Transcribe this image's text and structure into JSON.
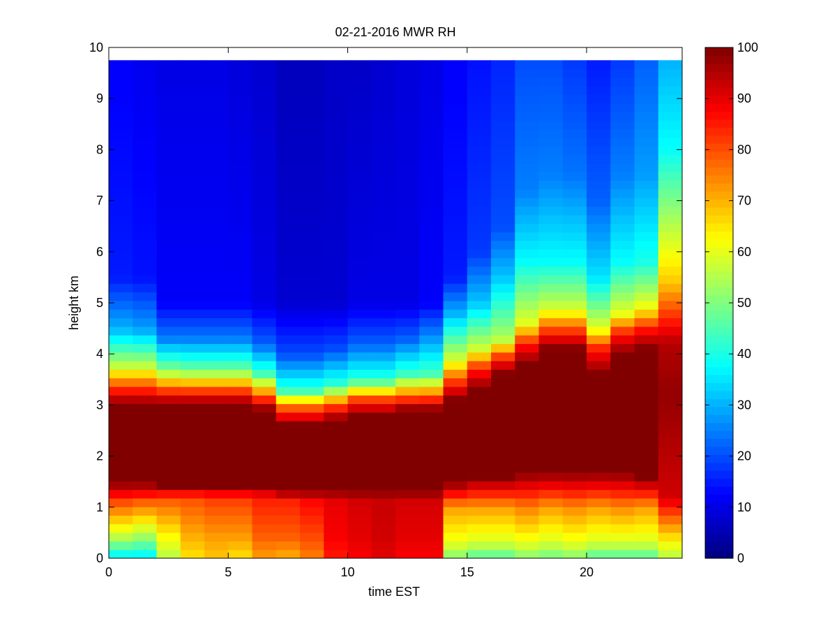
{
  "chart_data": {
    "type": "heatmap",
    "title": "02-21-2016 MWR RH",
    "xlabel": "time EST",
    "ylabel": "height km",
    "xlim": [
      0,
      24
    ],
    "ylim": [
      0,
      10
    ],
    "xticks": [
      "0",
      "5",
      "10",
      "15",
      "20"
    ],
    "xtick_values": [
      0,
      5,
      10,
      15,
      20
    ],
    "yticks": [
      "0",
      "1",
      "2",
      "3",
      "4",
      "5",
      "6",
      "7",
      "8",
      "9",
      "10"
    ],
    "ytick_values": [
      0,
      1,
      2,
      3,
      4,
      5,
      6,
      7,
      8,
      9,
      10
    ],
    "colorbar": {
      "min": 0,
      "max": 100,
      "ticks": [
        "0",
        "10",
        "20",
        "30",
        "40",
        "50",
        "60",
        "70",
        "80",
        "90",
        "100"
      ],
      "tick_values": [
        0,
        10,
        20,
        30,
        40,
        50,
        60,
        70,
        80,
        90,
        100
      ],
      "colormap": "jet"
    },
    "x_start": 0,
    "x_step": 1,
    "x_count": 24,
    "y_max": 9.75,
    "profiles": [
      {
        "x": 0,
        "z": [
          0.0,
          0.4,
          1.1,
          1.5,
          3.0,
          3.2,
          3.8,
          4.5,
          5.5,
          9.75
        ],
        "v": [
          35,
          55,
          80,
          100,
          100,
          90,
          55,
          30,
          15,
          12
        ]
      },
      {
        "x": 1,
        "z": [
          0.0,
          0.4,
          1.1,
          1.5,
          3.0,
          3.2,
          3.8,
          4.5,
          5.5,
          9.75
        ],
        "v": [
          35,
          52,
          78,
          100,
          100,
          90,
          55,
          28,
          14,
          11
        ]
      },
      {
        "x": 2,
        "z": [
          0.0,
          0.4,
          1.2,
          1.4,
          3.0,
          3.2,
          3.7,
          4.3,
          5.0,
          9.75
        ],
        "v": [
          55,
          62,
          80,
          100,
          100,
          88,
          50,
          25,
          12,
          10
        ]
      },
      {
        "x": 3,
        "z": [
          0.0,
          0.4,
          1.2,
          1.4,
          3.0,
          3.2,
          3.7,
          4.3,
          5.0,
          9.75
        ],
        "v": [
          65,
          70,
          80,
          100,
          100,
          88,
          48,
          25,
          12,
          10
        ]
      },
      {
        "x": 4,
        "z": [
          0.0,
          0.4,
          1.2,
          1.4,
          3.0,
          3.2,
          3.7,
          4.3,
          5.0,
          9.75
        ],
        "v": [
          68,
          72,
          82,
          100,
          100,
          88,
          48,
          25,
          12,
          10
        ]
      },
      {
        "x": 5,
        "z": [
          0.0,
          0.4,
          1.2,
          1.4,
          3.0,
          3.2,
          3.7,
          4.3,
          5.0,
          9.75
        ],
        "v": [
          65,
          72,
          82,
          100,
          100,
          88,
          48,
          25,
          12,
          9
        ]
      },
      {
        "x": 6,
        "z": [
          0.0,
          0.4,
          1.2,
          1.4,
          2.9,
          3.1,
          3.6,
          4.2,
          5.0,
          9.75
        ],
        "v": [
          72,
          78,
          85,
          100,
          100,
          85,
          45,
          22,
          10,
          8
        ]
      },
      {
        "x": 7,
        "z": [
          0.0,
          0.4,
          1.2,
          1.3,
          2.6,
          3.0,
          3.3,
          4.0,
          5.0,
          9.75
        ],
        "v": [
          70,
          78,
          85,
          100,
          100,
          75,
          42,
          20,
          8,
          6
        ]
      },
      {
        "x": 8,
        "z": [
          0.0,
          0.4,
          1.2,
          1.3,
          2.6,
          3.0,
          3.3,
          4.0,
          5.0,
          9.75
        ],
        "v": [
          75,
          80,
          88,
          100,
          100,
          75,
          42,
          20,
          8,
          6
        ]
      },
      {
        "x": 9,
        "z": [
          0.0,
          0.4,
          1.2,
          1.3,
          2.7,
          3.0,
          3.4,
          4.1,
          5.0,
          9.75
        ],
        "v": [
          85,
          88,
          90,
          100,
          100,
          80,
          42,
          20,
          8,
          7
        ]
      },
      {
        "x": 10,
        "z": [
          0.0,
          0.4,
          1.2,
          1.3,
          2.8,
          3.1,
          3.5,
          4.2,
          5.0,
          9.75
        ],
        "v": [
          88,
          90,
          92,
          100,
          100,
          82,
          42,
          22,
          10,
          7
        ]
      },
      {
        "x": 11,
        "z": [
          0.0,
          0.4,
          1.2,
          1.3,
          2.8,
          3.1,
          3.5,
          4.2,
          5.0,
          9.75
        ],
        "v": [
          90,
          92,
          93,
          100,
          100,
          82,
          42,
          22,
          10,
          8
        ]
      },
      {
        "x": 12,
        "z": [
          0.0,
          0.4,
          1.2,
          1.3,
          2.9,
          3.1,
          3.6,
          4.3,
          5.0,
          9.75
        ],
        "v": [
          88,
          90,
          92,
          100,
          100,
          84,
          44,
          22,
          10,
          9
        ]
      },
      {
        "x": 13,
        "z": [
          0.0,
          0.4,
          1.2,
          1.3,
          2.9,
          3.1,
          3.6,
          4.4,
          5.0,
          9.75
        ],
        "v": [
          88,
          90,
          92,
          100,
          100,
          85,
          45,
          25,
          12,
          10
        ]
      },
      {
        "x": 14,
        "z": [
          0.0,
          0.3,
          1.0,
          1.5,
          3.1,
          3.4,
          3.9,
          4.8,
          5.5,
          9.75
        ],
        "v": [
          50,
          60,
          72,
          100,
          100,
          85,
          58,
          30,
          15,
          12
        ]
      },
      {
        "x": 15,
        "z": [
          0.0,
          0.3,
          1.0,
          1.6,
          3.3,
          3.7,
          4.1,
          5.0,
          6.0,
          9.75
        ],
        "v": [
          45,
          58,
          72,
          100,
          100,
          85,
          58,
          32,
          18,
          14
        ]
      },
      {
        "x": 16,
        "z": [
          0.0,
          0.3,
          1.0,
          1.6,
          3.6,
          3.9,
          4.3,
          5.5,
          6.5,
          9.75
        ],
        "v": [
          45,
          58,
          72,
          100,
          100,
          85,
          55,
          32,
          20,
          16
        ]
      },
      {
        "x": 17,
        "z": [
          0.0,
          0.3,
          1.0,
          1.7,
          3.8,
          4.2,
          4.6,
          5.8,
          7.2,
          9.75
        ],
        "v": [
          50,
          60,
          75,
          100,
          100,
          85,
          60,
          38,
          25,
          20
        ]
      },
      {
        "x": 18,
        "z": [
          0.0,
          0.3,
          1.0,
          1.7,
          4.1,
          4.4,
          4.9,
          5.8,
          7.5,
          9.75
        ],
        "v": [
          48,
          58,
          72,
          100,
          100,
          85,
          58,
          38,
          25,
          20
        ]
      },
      {
        "x": 19,
        "z": [
          0.0,
          0.3,
          1.0,
          1.7,
          4.1,
          4.4,
          4.9,
          5.8,
          7.5,
          9.75
        ],
        "v": [
          50,
          60,
          74,
          100,
          100,
          85,
          58,
          38,
          24,
          18
        ]
      },
      {
        "x": 20,
        "z": [
          0.0,
          0.3,
          1.0,
          1.7,
          3.6,
          4.1,
          4.5,
          5.5,
          7.0,
          9.75
        ],
        "v": [
          45,
          58,
          72,
          100,
          100,
          85,
          60,
          35,
          22,
          15
        ]
      },
      {
        "x": 21,
        "z": [
          0.0,
          0.3,
          1.0,
          1.7,
          4.0,
          4.4,
          4.8,
          5.8,
          7.5,
          9.75
        ],
        "v": [
          45,
          58,
          74,
          100,
          100,
          85,
          60,
          38,
          25,
          18
        ]
      },
      {
        "x": 22,
        "z": [
          0.0,
          0.3,
          1.0,
          1.6,
          4.1,
          4.5,
          4.9,
          5.8,
          7.5,
          9.75
        ],
        "v": [
          45,
          58,
          72,
          100,
          100,
          85,
          62,
          40,
          28,
          22
        ]
      },
      {
        "x": 23,
        "z": [
          0.0,
          0.3,
          0.8,
          1.2,
          3.2,
          4.2,
          5.4,
          6.8,
          8.0,
          9.75
        ],
        "v": [
          55,
          62,
          78,
          92,
          98,
          95,
          68,
          52,
          38,
          30
        ]
      }
    ]
  }
}
